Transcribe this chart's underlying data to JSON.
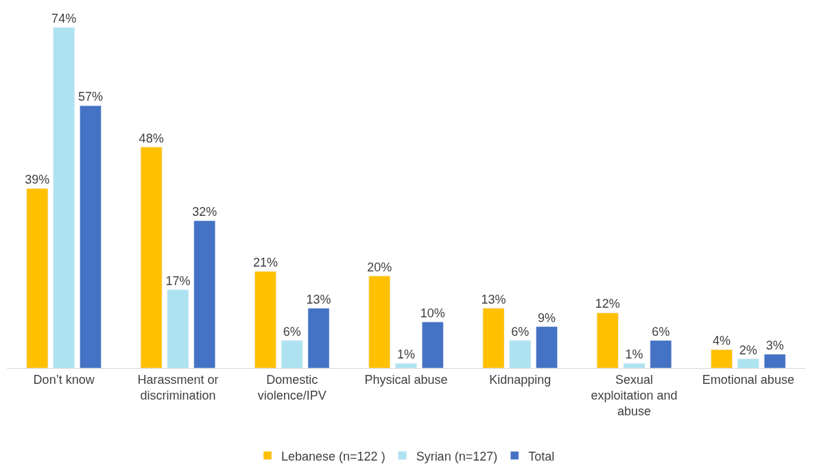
{
  "chart_data": {
    "type": "bar",
    "categories": [
      "Don’t know",
      "Harassment or discrimination",
      "Domestic violence/IPV",
      "Physical abuse",
      "Kidnapping",
      "Sexual exploitation and abuse",
      "Emotional abuse"
    ],
    "series": [
      {
        "name": "Lebanese (n=122 )",
        "color": "#ffc000",
        "values": [
          39,
          48,
          21,
          20,
          13,
          12,
          4
        ],
        "value_labels": [
          "39%",
          "48%",
          "21%",
          "20%",
          "13%",
          "12%",
          "4%"
        ]
      },
      {
        "name": "Syrian (n=127)",
        "color": "#ade3f1",
        "values": [
          74,
          17,
          6,
          1,
          6,
          1,
          2
        ],
        "value_labels": [
          "74%",
          "17%",
          "6%",
          "1%",
          "6%",
          "1%",
          "2%"
        ]
      },
      {
        "name": "Total",
        "color": "#4472c4",
        "values": [
          57,
          32,
          13,
          10,
          9,
          6,
          3
        ],
        "value_labels": [
          "57%",
          "32%",
          "13%",
          "10%",
          "9%",
          "6%",
          "3%"
        ]
      }
    ],
    "legend": "bottom"
  }
}
